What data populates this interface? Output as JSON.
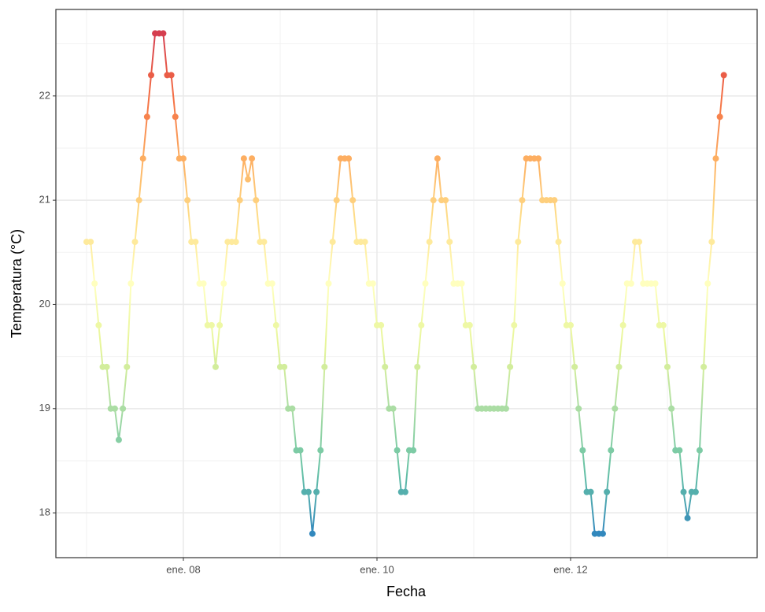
{
  "chart_data": {
    "type": "line",
    "x_label": "Fecha",
    "y_label": "Temperatura (°C)",
    "x": [
      7,
      7.042,
      7.083,
      7.125,
      7.167,
      7.208,
      7.25,
      7.292,
      7.333,
      7.375,
      7.417,
      7.458,
      7.5,
      7.542,
      7.583,
      7.625,
      7.667,
      7.708,
      7.75,
      7.792,
      7.833,
      7.875,
      7.917,
      7.958,
      8,
      8.042,
      8.083,
      8.125,
      8.167,
      8.208,
      8.25,
      8.292,
      8.333,
      8.375,
      8.417,
      8.458,
      8.5,
      8.542,
      8.583,
      8.625,
      8.667,
      8.708,
      8.75,
      8.792,
      8.833,
      8.875,
      8.917,
      8.958,
      9,
      9.042,
      9.083,
      9.125,
      9.167,
      9.208,
      9.25,
      9.292,
      9.333,
      9.375,
      9.417,
      9.458,
      9.5,
      9.542,
      9.583,
      9.625,
      9.667,
      9.708,
      9.75,
      9.792,
      9.833,
      9.875,
      9.917,
      9.958,
      10,
      10.042,
      10.083,
      10.125,
      10.167,
      10.208,
      10.25,
      10.292,
      10.333,
      10.375,
      10.417,
      10.458,
      10.5,
      10.542,
      10.583,
      10.625,
      10.667,
      10.708,
      10.75,
      10.792,
      10.833,
      10.875,
      10.917,
      10.958,
      11,
      11.042,
      11.083,
      11.125,
      11.167,
      11.208,
      11.25,
      11.292,
      11.333,
      11.375,
      11.417,
      11.458,
      11.5,
      11.542,
      11.583,
      11.625,
      11.667,
      11.708,
      11.75,
      11.792,
      11.833,
      11.875,
      11.917,
      11.958,
      12,
      12.042,
      12.083,
      12.125,
      12.167,
      12.208,
      12.25,
      12.292,
      12.333,
      12.375,
      12.417,
      12.458,
      12.5,
      12.542,
      12.583,
      12.625,
      12.667,
      12.708,
      12.75,
      12.792,
      12.833,
      12.875,
      12.917,
      12.958,
      13,
      13.042,
      13.083,
      13.125,
      13.167,
      13.208,
      13.25,
      13.292,
      13.333,
      13.375,
      13.417,
      13.458,
      13.5,
      13.542,
      13.583
    ],
    "values": [
      20.6,
      20.6,
      20.2,
      19.8,
      19.4,
      19.4,
      19.0,
      19.0,
      18.7,
      19.0,
      19.4,
      20.2,
      20.6,
      21.0,
      21.4,
      21.8,
      22.2,
      22.6,
      22.6,
      22.6,
      22.2,
      22.2,
      21.8,
      21.4,
      21.4,
      21.0,
      20.6,
      20.6,
      20.2,
      20.2,
      19.8,
      19.8,
      19.4,
      19.8,
      20.2,
      20.6,
      20.6,
      20.6,
      21.0,
      21.4,
      21.2,
      21.4,
      21.0,
      20.6,
      20.6,
      20.2,
      20.2,
      19.8,
      19.4,
      19.4,
      19.0,
      19.0,
      18.6,
      18.6,
      18.2,
      18.2,
      17.8,
      18.2,
      18.6,
      19.4,
      20.2,
      20.6,
      21.0,
      21.4,
      21.4,
      21.4,
      21.0,
      20.6,
      20.6,
      20.6,
      20.2,
      20.2,
      19.8,
      19.8,
      19.4,
      19.0,
      19.0,
      18.6,
      18.2,
      18.2,
      18.6,
      18.6,
      19.4,
      19.8,
      20.2,
      20.6,
      21.0,
      21.4,
      21.0,
      21.0,
      20.6,
      20.2,
      20.2,
      20.2,
      19.8,
      19.8,
      19.4,
      19.0,
      19.0,
      19.0,
      19.0,
      19.0,
      19.0,
      19.0,
      19.0,
      19.4,
      19.8,
      20.6,
      21.0,
      21.4,
      21.4,
      21.4,
      21.4,
      21.0,
      21.0,
      21.0,
      21.0,
      20.6,
      20.2,
      19.8,
      19.8,
      19.4,
      19.0,
      18.6,
      18.2,
      18.2,
      17.8,
      17.8,
      17.8,
      18.2,
      18.6,
      19.0,
      19.4,
      19.8,
      20.2,
      20.2,
      20.6,
      20.6,
      20.2,
      20.2,
      20.2,
      20.2,
      19.8,
      19.8,
      19.4,
      19.0,
      18.6,
      18.6,
      18.2,
      17.95,
      18.2,
      18.2,
      18.6,
      19.4,
      20.2,
      20.6,
      21.4,
      21.8,
      22.2
    ],
    "color_scale": [
      "#3288BD",
      "#66C2A5",
      "#ABDDA4",
      "#E6F598",
      "#FFFFBF",
      "#FEE08B",
      "#FDAE61",
      "#F46D43",
      "#D53E4F"
    ],
    "xlim": [
      6.683,
      13.927
    ],
    "ylim": [
      17.57,
      22.83
    ],
    "xticks": [
      {
        "value": 8,
        "label": "ene. 08"
      },
      {
        "value": 10,
        "label": "ene. 10"
      },
      {
        "value": 12,
        "label": "ene. 12"
      }
    ],
    "yticks": [
      18,
      19,
      20,
      21,
      22
    ],
    "x_minor_ticks": [
      7,
      9,
      11,
      13
    ],
    "y_minor_ticks": [
      18.5,
      19.5,
      20.5,
      21.5,
      22.5
    ],
    "grid": true
  }
}
